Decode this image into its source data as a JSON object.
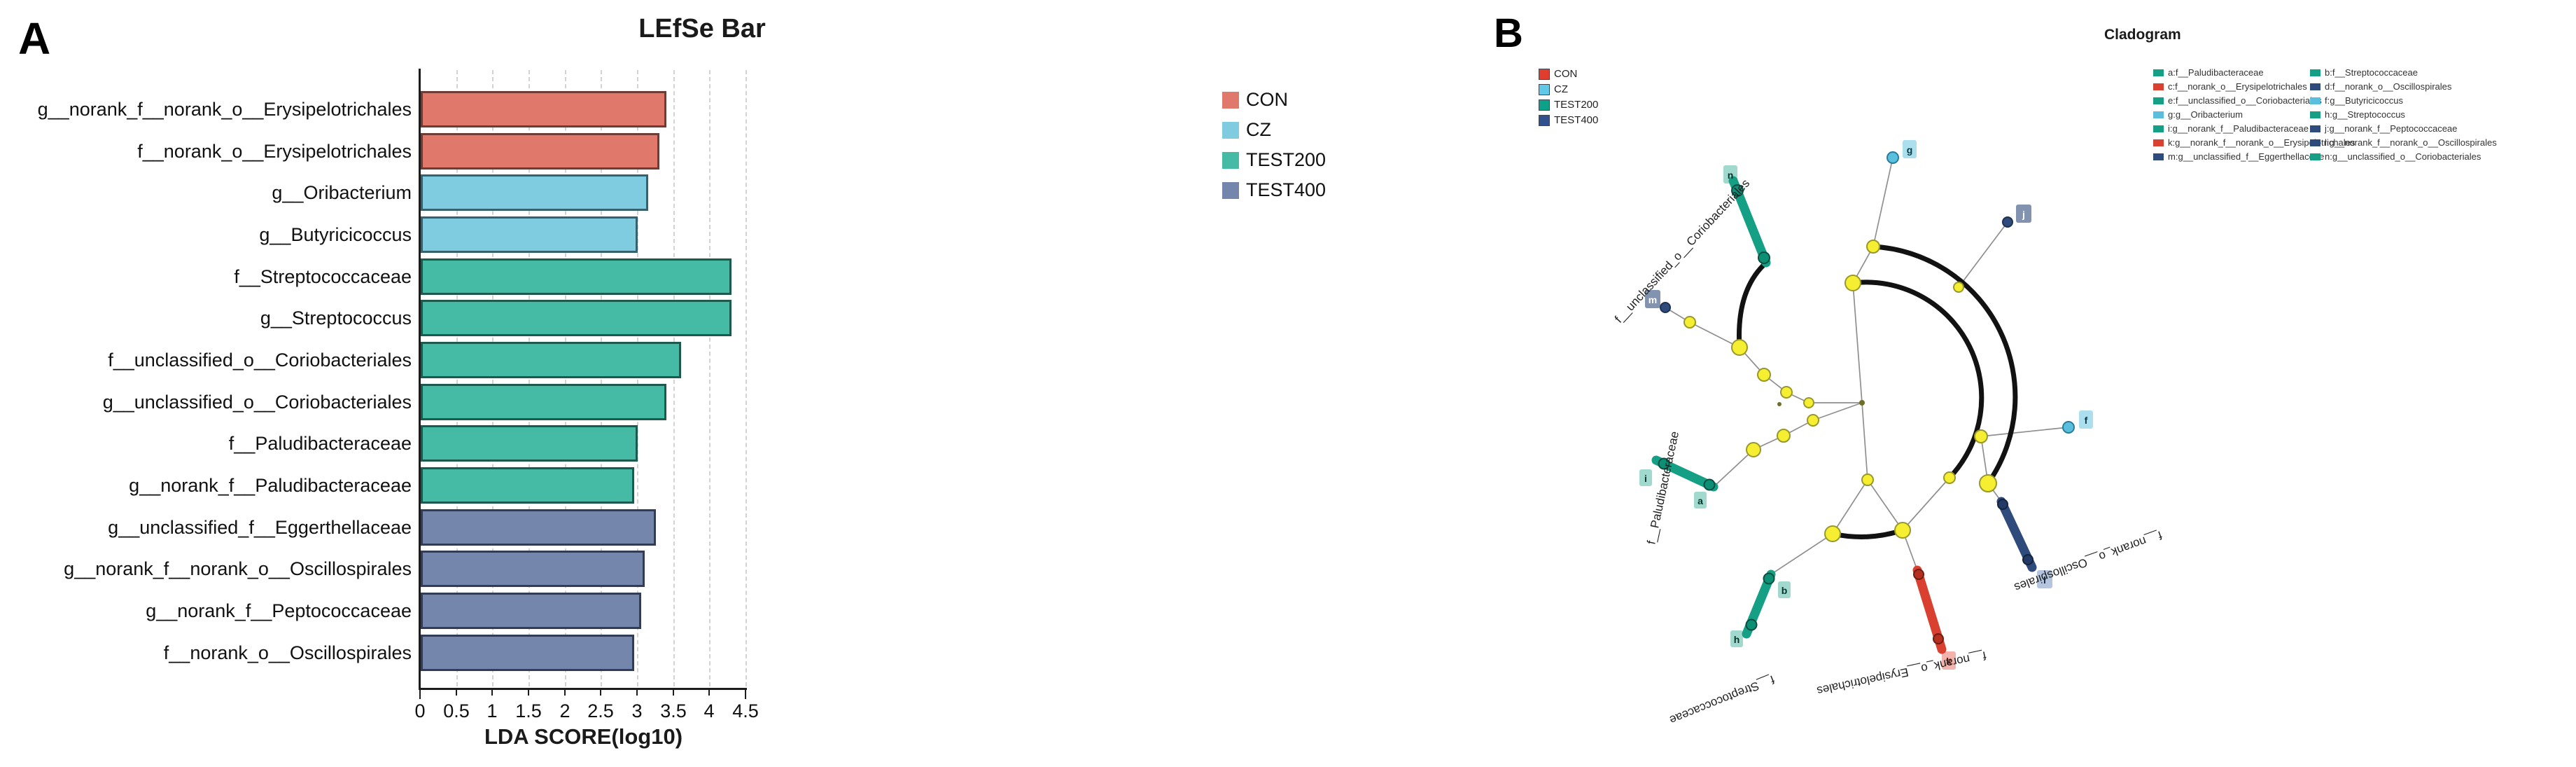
{
  "panelA": {
    "label": "A",
    "title": "LEfSe Bar",
    "xlabel": "LDA SCORE(log10)",
    "x_ticks": [
      "0",
      "0.5",
      "1",
      "1.5",
      "2",
      "2.5",
      "3",
      "3.5",
      "4",
      "4.5"
    ],
    "legend": [
      {
        "label": "CON",
        "color": "#e0796b"
      },
      {
        "label": "CZ",
        "color": "#7fcbe0"
      },
      {
        "label": "TEST200",
        "color": "#45baa4"
      },
      {
        "label": "TEST400",
        "color": "#7586ac"
      }
    ]
  },
  "panelB": {
    "label": "B",
    "title": "Cladogram",
    "legend_separator": " : ",
    "group_legend": [
      {
        "label": "CON",
        "color": "#e03d2e"
      },
      {
        "label": "CZ",
        "color": "#62c8e8"
      },
      {
        "label": "TEST200",
        "color": "#0ea189"
      },
      {
        "label": "TEST400",
        "color": "#33508e"
      }
    ],
    "branch_labels": [
      "f__unclassified_o__Coriobacteriales",
      "f__Paludibacteraceae",
      "f__Streptococcaceae",
      "f__norank_o__Erysipelotrichales",
      "f__norank_o__Oscillospirales"
    ]
  },
  "chart_data": [
    {
      "type": "bar",
      "orientation": "horizontal",
      "title": "LEfSe Bar",
      "xlabel": "LDA SCORE(log10)",
      "xlim": [
        0,
        4.5
      ],
      "x_ticks": [
        0,
        0.5,
        1,
        1.5,
        2,
        2.5,
        3,
        3.5,
        4,
        4.5
      ],
      "grid": "dashed-vertical",
      "legend_position": "top-right",
      "categories": [
        "g__norank_f__norank_o__Erysipelotrichales",
        "f__norank_o__Erysipelotrichales",
        "g__Oribacterium",
        "g__Butyricicoccus",
        "f__Streptococcaceae",
        "g__Streptococcus",
        "f__unclassified_o__Coriobacteriales",
        "g__unclassified_o__Coriobacteriales",
        "f__Paludibacteraceae",
        "g__norank_f__Paludibacteraceae",
        "g__unclassified_f__Eggerthellaceae",
        "g__norank_f__norank_o__Oscillospirales",
        "g__norank_f__Peptococcaceae",
        "f__norank_o__Oscillospirales"
      ],
      "values": [
        3.4,
        3.3,
        3.15,
        3.0,
        4.3,
        4.3,
        3.6,
        3.4,
        3.0,
        2.95,
        3.25,
        3.1,
        3.05,
        2.95
      ],
      "groups": [
        "CON",
        "CON",
        "CZ",
        "CZ",
        "TEST200",
        "TEST200",
        "TEST200",
        "TEST200",
        "TEST200",
        "TEST200",
        "TEST400",
        "TEST400",
        "TEST400",
        "TEST400"
      ],
      "bar_colors": [
        "#e0796b",
        "#e0796b",
        "#7fcbe0",
        "#7fcbe0",
        "#45baa4",
        "#45baa4",
        "#45baa4",
        "#45baa4",
        "#45baa4",
        "#45baa4",
        "#7586ac",
        "#7586ac",
        "#7586ac",
        "#7586ac"
      ]
    },
    {
      "type": "cladogram",
      "title": "Cladogram",
      "groups": [
        "CON",
        "CZ",
        "TEST200",
        "TEST400"
      ],
      "significant_family_branches": [
        "f__unclassified_o__Coriobacteriales",
        "f__Paludibacteraceae",
        "f__Streptococcaceae",
        "f__norank_o__Erysipelotrichales",
        "f__norank_o__Oscillospirales"
      ],
      "nodes": [
        {
          "key": "a",
          "label": "f__Paludibacteraceae",
          "color": "#159f85"
        },
        {
          "key": "b",
          "label": "f__Streptococcaceae",
          "color": "#159f85"
        },
        {
          "key": "c",
          "label": "f__norank_o__Erysipelotrichales",
          "color": "#d9402f"
        },
        {
          "key": "d",
          "label": "f__norank_o__Oscillospirales",
          "color": "#2f4b7c"
        },
        {
          "key": "e",
          "label": "f__unclassified_o__Coriobacteriales",
          "color": "#159f85"
        },
        {
          "key": "f",
          "label": "g__Butyricicoccus",
          "color": "#5abfdd"
        },
        {
          "key": "g",
          "label": "g__Oribacterium",
          "color": "#5abfdd"
        },
        {
          "key": "h",
          "label": "g__Streptococcus",
          "color": "#159f85"
        },
        {
          "key": "i",
          "label": "g__norank_f__Paludibacteraceae",
          "color": "#159f85"
        },
        {
          "key": "j",
          "label": "g__norank_f__Peptococcaceae",
          "color": "#2f4b7c"
        },
        {
          "key": "k",
          "label": "g__norank_f__norank_o__Erysipelotrichales",
          "color": "#d9402f"
        },
        {
          "key": "l",
          "label": "g__norank_f__norank_o__Oscillospirales",
          "color": "#2f4b7c"
        },
        {
          "key": "m",
          "label": "g__unclassified_f__Eggerthellaceae",
          "color": "#2f4b7c"
        },
        {
          "key": "n",
          "label": "g__unclassified_o__Coriobacteriales",
          "color": "#159f85"
        }
      ]
    }
  ]
}
